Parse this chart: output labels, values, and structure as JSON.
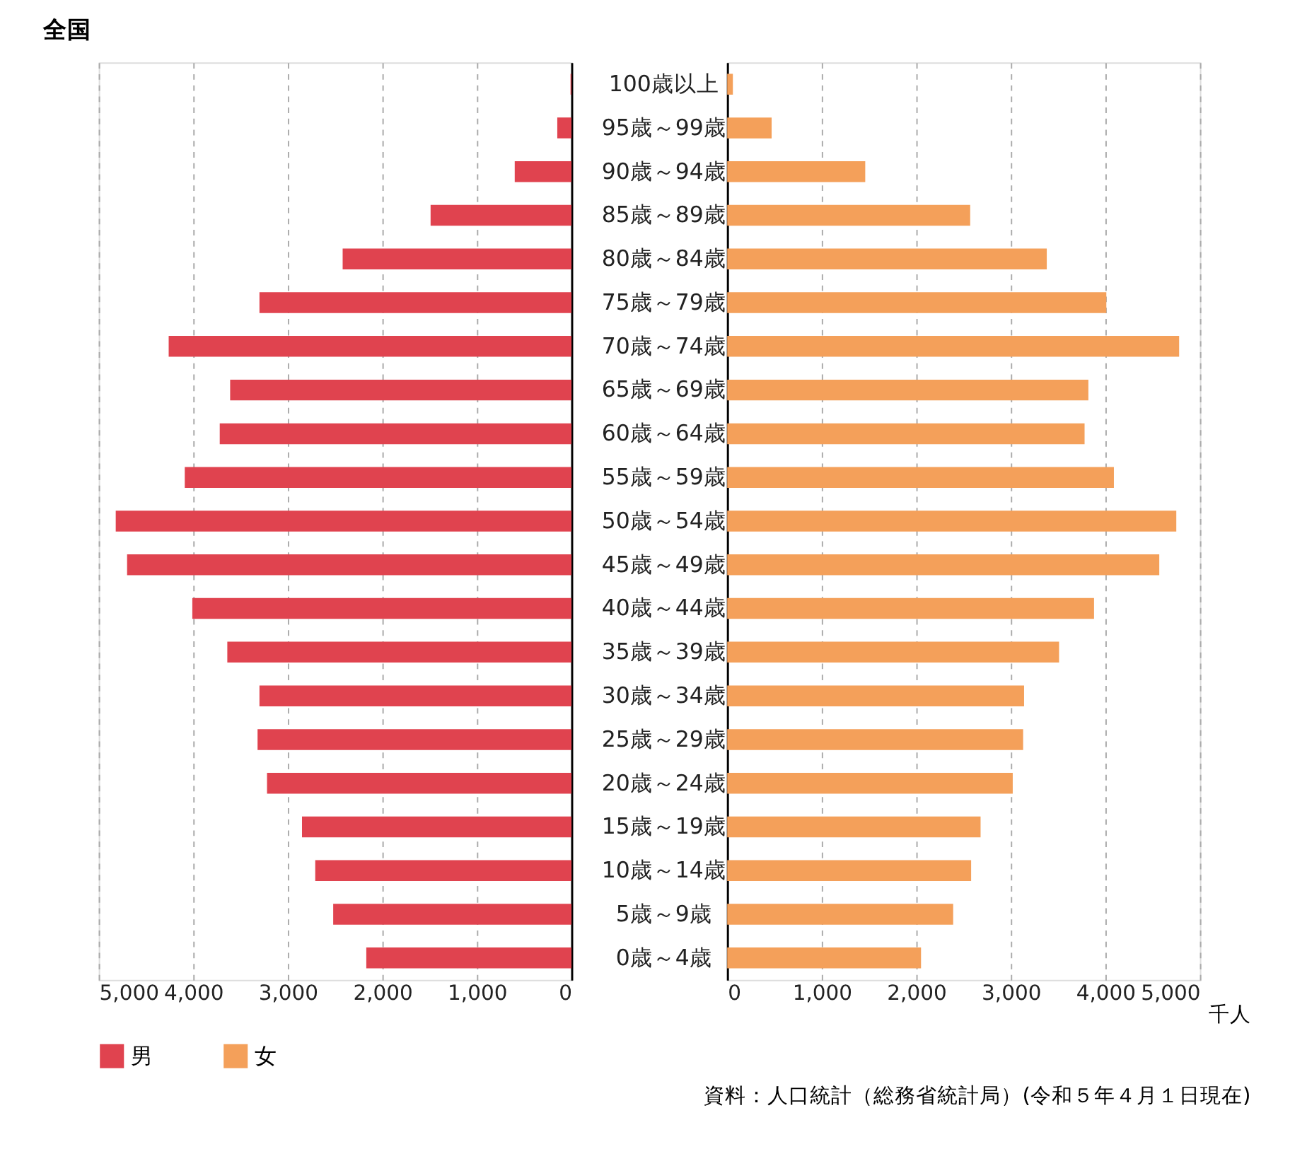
{
  "chart_data": [
    {
      "type": "bar",
      "orientation": "horizontal",
      "title": "全国",
      "categories": [
        "100歳以上",
        "95歳～99歳",
        "90歳～94歳",
        "85歳～89歳",
        "80歳～84歳",
        "75歳～79歳",
        "70歳～74歳",
        "65歳～69歳",
        "60歳～64歳",
        "55歳～59歳",
        "50歳～54歳",
        "45歳～49歳",
        "40歳～44歳",
        "35歳～39歳",
        "30歳～34歳",
        "25歳～29歳",
        "20歳～24歳",
        "15歳～19歳",
        "10歳～14歳",
        "5歳～9歳",
        "0歳～4歳"
      ],
      "series": [
        {
          "name": "男",
          "color": "#e0434f",
          "values": [
            10,
            150,
            600,
            1490,
            2420,
            3300,
            4260,
            3610,
            3720,
            4090,
            4820,
            4700,
            4010,
            3640,
            3300,
            3320,
            3220,
            2850,
            2710,
            2520,
            2170
          ]
        }
      ],
      "xlim": [
        5000,
        0
      ],
      "xticks": [
        {
          "value": 5000,
          "label": "5,000"
        },
        {
          "value": 4000,
          "label": "4,000"
        },
        {
          "value": 3000,
          "label": "3,000"
        },
        {
          "value": 2000,
          "label": "2,000"
        },
        {
          "value": 1000,
          "label": "1,000"
        },
        0
      ],
      "grid": "x",
      "legend": "bottom",
      "annotations": [
        "資料：人口統計（総務省統計局）(令和５年４月１日現在)"
      ]
    },
    {
      "type": "bar",
      "orientation": "horizontal",
      "categories": [
        null,
        null,
        null,
        null,
        null,
        null,
        null,
        null,
        null,
        null,
        null,
        null,
        null,
        null,
        null,
        null,
        null,
        null,
        null,
        null,
        null
      ],
      "series": [
        {
          "name": "女",
          "color": "#f4a05a",
          "values": [
            60,
            470,
            1460,
            2570,
            3380,
            4010,
            4780,
            3820,
            3780,
            4090,
            4750,
            4570,
            3880,
            3510,
            3140,
            3130,
            3020,
            2680,
            2580,
            2390,
            2050
          ]
        }
      ],
      "xlim": [
        0,
        5000
      ],
      "xticks": [
        0,
        {
          "value": 1000,
          "label": "1,000"
        },
        {
          "value": 2000,
          "label": "2,000"
        },
        {
          "value": 3000,
          "label": "3,000"
        },
        {
          "value": 4000,
          "label": "4,000"
        },
        {
          "value": 5000,
          "label": "5,000"
        }
      ],
      "xlabel": "千人",
      "tick_labels": "x",
      "grid": "x",
      "legend": "bottom"
    }
  ]
}
